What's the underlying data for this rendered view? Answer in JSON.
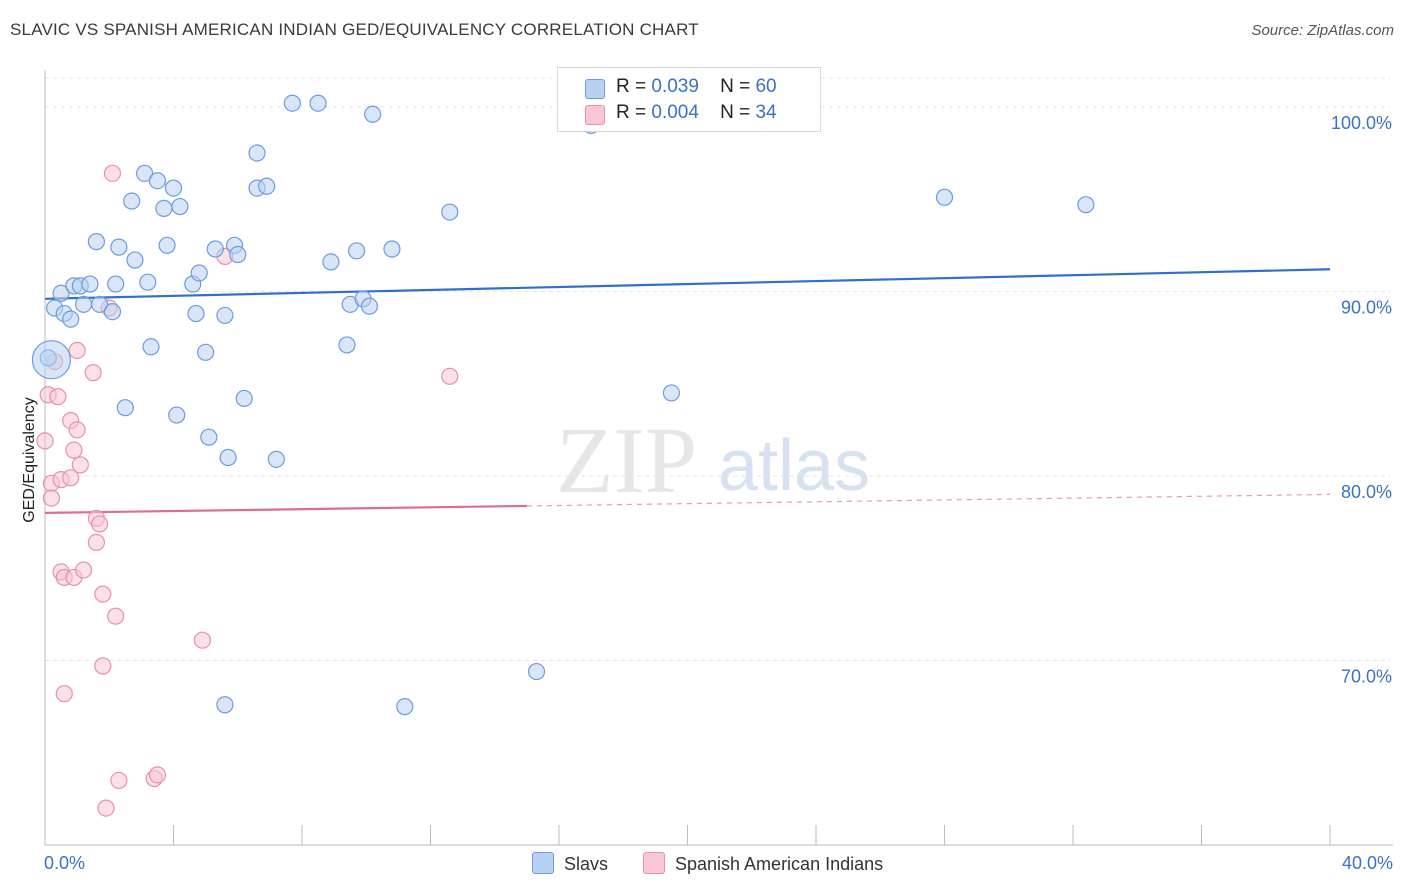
{
  "title": "SLAVIC VS SPANISH AMERICAN INDIAN GED/EQUIVALENCY CORRELATION CHART",
  "source": "Source: ZipAtlas.com",
  "watermark": {
    "zip": "ZIP",
    "atlas": "atlas"
  },
  "legend": {
    "r_label": "R =",
    "n_label": "N =",
    "series": [
      {
        "r": "0.039",
        "n": "60"
      },
      {
        "r": "0.004",
        "n": "34"
      }
    ]
  },
  "colors": {
    "blue_fill": "#b8d1f3",
    "blue_stroke": "#6d9be0",
    "blue_line": "#2f6fcd",
    "pink_fill": "#f8c6d6",
    "pink_stroke": "#e890ad",
    "pink_line": "#e06c92",
    "axis_label": "#3a72c4"
  },
  "chart_data": {
    "type": "scatter",
    "title": "SLAVIC VS SPANISH AMERICAN INDIAN GED/EQUIVALENCY CORRELATION CHART",
    "xlabel": "",
    "ylabel": "GED/Equivalency",
    "xlim": [
      0,
      40
    ],
    "ylim": [
      60,
      102
    ],
    "x_tick_labels": [
      "0.0%",
      "40.0%"
    ],
    "y_ticks": [
      70,
      80,
      90,
      100
    ],
    "y_tick_labels": [
      "70.0%",
      "80.0%",
      "90.0%",
      "100.0%"
    ],
    "grid": true,
    "legend_position": "top-center",
    "series": [
      {
        "name": "Slavs",
        "r": 0.039,
        "n": 60,
        "trend": {
          "x": [
            0,
            40
          ],
          "y": [
            89.6,
            91.2
          ],
          "dashed_from": null
        },
        "points": [
          [
            0.1,
            86.4
          ],
          [
            0.3,
            89.1
          ],
          [
            0.5,
            89.9
          ],
          [
            0.6,
            88.8
          ],
          [
            0.8,
            88.5
          ],
          [
            0.9,
            90.3
          ],
          [
            1.1,
            90.3
          ],
          [
            1.2,
            89.3
          ],
          [
            1.4,
            90.4
          ],
          [
            1.6,
            92.7
          ],
          [
            1.7,
            89.3
          ],
          [
            2.1,
            88.9
          ],
          [
            2.2,
            90.4
          ],
          [
            2.3,
            92.4
          ],
          [
            2.5,
            83.7
          ],
          [
            2.7,
            94.9
          ],
          [
            2.8,
            91.7
          ],
          [
            3.1,
            96.4
          ],
          [
            3.2,
            90.5
          ],
          [
            3.3,
            87.0
          ],
          [
            3.5,
            96.0
          ],
          [
            3.7,
            94.5
          ],
          [
            3.8,
            92.5
          ],
          [
            4.0,
            95.6
          ],
          [
            4.1,
            83.3
          ],
          [
            4.2,
            94.6
          ],
          [
            4.6,
            90.4
          ],
          [
            4.7,
            88.8
          ],
          [
            4.8,
            91.0
          ],
          [
            5.0,
            86.7
          ],
          [
            5.1,
            82.1
          ],
          [
            5.3,
            92.3
          ],
          [
            5.6,
            88.7
          ],
          [
            5.7,
            81.0
          ],
          [
            5.9,
            92.5
          ],
          [
            6.0,
            92.0
          ],
          [
            6.2,
            84.2
          ],
          [
            6.6,
            97.5
          ],
          [
            6.6,
            95.6
          ],
          [
            6.9,
            95.7
          ],
          [
            7.2,
            80.9
          ],
          [
            7.7,
            100.2
          ],
          [
            8.5,
            100.2
          ],
          [
            8.9,
            91.6
          ],
          [
            9.4,
            87.1
          ],
          [
            9.5,
            89.3
          ],
          [
            9.7,
            92.2
          ],
          [
            9.9,
            89.6
          ],
          [
            10.1,
            89.2
          ],
          [
            10.2,
            99.6
          ],
          [
            10.8,
            92.3
          ],
          [
            12.6,
            94.3
          ],
          [
            11.2,
            67.5
          ],
          [
            5.6,
            67.6
          ],
          [
            15.3,
            69.4
          ],
          [
            19.5,
            84.5
          ],
          [
            28.0,
            95.1
          ],
          [
            32.4,
            94.7
          ],
          [
            17.0,
            99.0
          ],
          [
            0.2,
            86.3
          ]
        ]
      },
      {
        "name": "Spanish American Indians",
        "r": 0.004,
        "n": 34,
        "trend": {
          "x": [
            0,
            40
          ],
          "y": [
            78.0,
            79.0
          ],
          "dashed_from": 15.0
        },
        "points": [
          [
            0.0,
            81.9
          ],
          [
            0.1,
            84.4
          ],
          [
            0.2,
            79.6
          ],
          [
            0.2,
            78.8
          ],
          [
            0.3,
            86.2
          ],
          [
            0.4,
            84.3
          ],
          [
            0.5,
            74.8
          ],
          [
            0.5,
            79.8
          ],
          [
            0.6,
            74.5
          ],
          [
            0.6,
            68.2
          ],
          [
            0.8,
            79.9
          ],
          [
            0.8,
            83.0
          ],
          [
            0.9,
            81.4
          ],
          [
            0.9,
            74.5
          ],
          [
            1.0,
            86.8
          ],
          [
            1.0,
            82.5
          ],
          [
            1.1,
            80.6
          ],
          [
            1.2,
            74.9
          ],
          [
            1.5,
            85.6
          ],
          [
            1.6,
            77.7
          ],
          [
            1.6,
            76.4
          ],
          [
            1.7,
            77.4
          ],
          [
            1.8,
            69.7
          ],
          [
            1.8,
            73.6
          ],
          [
            1.9,
            62.0
          ],
          [
            2.0,
            89.1
          ],
          [
            2.1,
            96.4
          ],
          [
            2.2,
            72.4
          ],
          [
            2.3,
            63.5
          ],
          [
            3.4,
            63.6
          ],
          [
            3.5,
            63.8
          ],
          [
            4.9,
            71.1
          ],
          [
            5.6,
            91.9
          ],
          [
            12.6,
            85.4
          ]
        ]
      }
    ]
  },
  "bottom_legend": [
    "Slavs",
    "Spanish American Indians"
  ]
}
